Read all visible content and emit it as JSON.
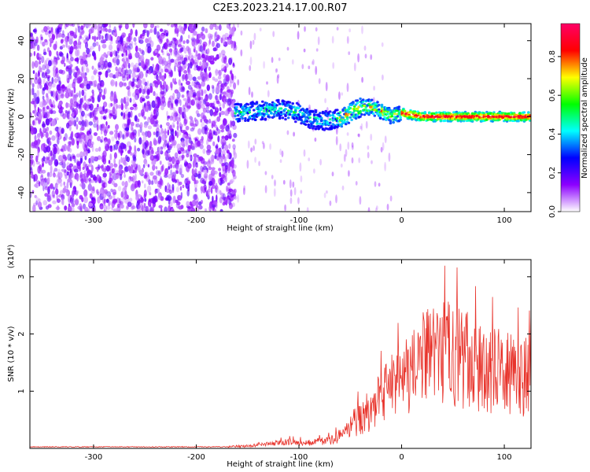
{
  "title": "C2E3.2023.214.17.00.R07",
  "chart_data": [
    {
      "type": "heatmap",
      "xlabel": "Height of straight line (km)",
      "ylabel": "Frequency (Hz)",
      "xlim": [
        -362,
        126
      ],
      "ylim": [
        -50,
        49
      ],
      "xticks": [
        -300,
        -200,
        -100,
        0,
        100
      ],
      "yticks": [
        -40,
        -20,
        0,
        20,
        40
      ],
      "colorbar": {
        "label": "Normalized spectral amplitude",
        "range": [
          0,
          0.97
        ],
        "ticks": [
          0.0,
          0.2,
          0.4,
          0.6,
          0.8
        ],
        "colormap": "rainbow",
        "colors": [
          "#ffffff",
          "#8c00ff",
          "#0000ff",
          "#00ffff",
          "#00ff00",
          "#ffff00",
          "#ff0000",
          "#ff0066"
        ]
      },
      "ridge": {
        "x": [
          -160,
          -140,
          -120,
          -100,
          -90,
          -80,
          -70,
          -60,
          -50,
          -40,
          -30,
          -20,
          -10,
          0,
          20,
          40,
          60,
          80,
          100,
          126
        ],
        "y": [
          2,
          3,
          4,
          2,
          -1,
          -2,
          -2,
          -1,
          2,
          5,
          5,
          3,
          0,
          2,
          0,
          0,
          0,
          0,
          0,
          0
        ]
      }
    },
    {
      "type": "line",
      "xlabel": "Height of straight line (km)",
      "ylabel": "SNR (10 * v/v)",
      "y_multiplier": "(x10⁴)",
      "xlim": [
        -362,
        126
      ],
      "ylim": [
        0,
        3.3
      ],
      "xticks": [
        -300,
        -200,
        -100,
        0,
        100
      ],
      "yticks": [
        1,
        2,
        3
      ],
      "color": "#e8342c",
      "envelope": {
        "x": [
          -362,
          -180,
          -150,
          -130,
          -110,
          -90,
          -70,
          -55,
          -45,
          -30,
          -20,
          -10,
          0,
          10,
          20,
          30,
          40,
          50,
          60,
          70,
          80,
          90,
          100,
          110,
          126
        ],
        "y": [
          0.03,
          0.03,
          0.05,
          0.09,
          0.14,
          0.12,
          0.18,
          0.32,
          0.6,
          0.85,
          1.1,
          1.35,
          1.45,
          1.75,
          1.9,
          2.0,
          2.05,
          2.1,
          1.95,
          1.85,
          1.75,
          1.7,
          1.65,
          1.6,
          1.55
        ]
      }
    }
  ]
}
